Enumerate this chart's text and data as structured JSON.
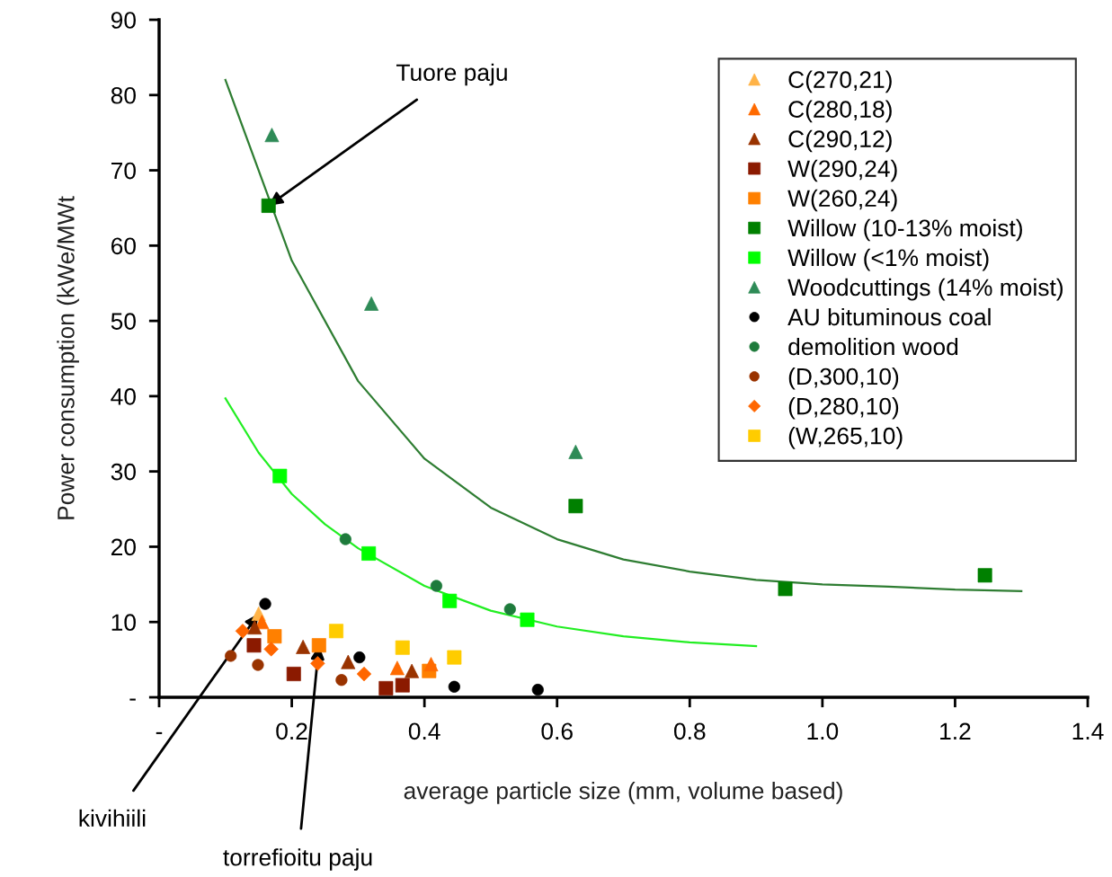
{
  "chart_data": {
    "type": "scatter",
    "xlabel": "average particle size (mm, volume based)",
    "ylabel": "Power consumption (kWe/MWt",
    "xlim": [
      0,
      1.4
    ],
    "xticks": [
      {
        "value": 0,
        "label": "-"
      },
      {
        "value": 0.2,
        "label": "0.2"
      },
      {
        "value": 0.4,
        "label": "0.4"
      },
      {
        "value": 0.6,
        "label": "0.6"
      },
      {
        "value": 0.8,
        "label": "0.8"
      },
      {
        "value": 1.0,
        "label": "1.0"
      },
      {
        "value": 1.2,
        "label": "1.2"
      },
      {
        "value": 1.4,
        "label": "1.4"
      }
    ],
    "ylim": [
      0,
      90
    ],
    "yticks": [
      {
        "value": 0,
        "label": "-"
      },
      10,
      20,
      30,
      40,
      50,
      60,
      70,
      80,
      90
    ],
    "grid": false,
    "legend": "top right",
    "series": [
      {
        "type": "line",
        "color": "#2e7d32",
        "marker": "none",
        "x": [
          0.1,
          0.2,
          0.3,
          0.4,
          0.5,
          0.6,
          0.7,
          0.8,
          0.9,
          1.0,
          1.1,
          1.2,
          1.3
        ],
        "values": [
          82,
          58,
          42,
          31.7,
          25.2,
          21,
          18.3,
          16.7,
          15.6,
          15,
          14.7,
          14.3,
          14.1
        ]
      },
      {
        "type": "line",
        "color": "#22ee22",
        "marker": "none",
        "x": [
          0.1,
          0.15,
          0.2,
          0.25,
          0.3,
          0.4,
          0.5,
          0.6,
          0.7,
          0.8,
          0.9
        ],
        "values": [
          39.7,
          32.5,
          27,
          23,
          19.8,
          14.8,
          11.5,
          9.4,
          8.1,
          7.3,
          6.8
        ]
      },
      {
        "name": "C(270,21)",
        "marker": "triangle",
        "color": "#ffb347",
        "x": [
          0.15
        ],
        "values": [
          11.1
        ]
      },
      {
        "name": "C(280,18)",
        "marker": "triangle",
        "color": "#ff6a00",
        "x": [
          0.155,
          0.359,
          0.41
        ],
        "values": [
          10.0,
          3.9,
          4.4
        ]
      },
      {
        "name": "C(290,12)",
        "marker": "triangle",
        "color": "#993300",
        "x": [
          0.144,
          0.217,
          0.285,
          0.381
        ],
        "values": [
          9.3,
          6.7,
          4.7,
          3.5
        ]
      },
      {
        "name": "W(290,24)",
        "marker": "square",
        "color": "#8b1a00",
        "x": [
          0.143,
          0.203,
          0.342,
          0.367
        ],
        "values": [
          6.9,
          3.1,
          1.2,
          1.6
        ]
      },
      {
        "name": "W(260,24)",
        "marker": "square",
        "color": "#ff8000",
        "x": [
          0.174,
          0.241,
          0.407
        ],
        "values": [
          8.1,
          6.9,
          3.5
        ]
      },
      {
        "name": "Willow (10-13% moist)",
        "marker": "square",
        "color": "#008000",
        "x": [
          0.165,
          0.628,
          0.944,
          1.245
        ],
        "values": [
          65.3,
          25.4,
          14.4,
          16.2
        ]
      },
      {
        "name": "Willow (<1% moist)",
        "marker": "square",
        "color": "#00ff00",
        "x": [
          0.182,
          0.316,
          0.438,
          0.555
        ],
        "values": [
          29.4,
          19.1,
          12.8,
          10.3
        ]
      },
      {
        "name": "Woodcuttings (14% moist)",
        "marker": "triangle",
        "color": "#2e8b57",
        "x": [
          0.17,
          0.32,
          0.628
        ],
        "values": [
          74.7,
          52.3,
          32.6
        ]
      },
      {
        "name": "AU bituminous coal",
        "marker": "circle",
        "color": "#000000",
        "x": [
          0.16,
          0.302,
          0.445,
          0.571
        ],
        "values": [
          12.4,
          5.3,
          1.4,
          1.0
        ]
      },
      {
        "name": "demolition wood",
        "marker": "circle",
        "color": "#1e7b3c",
        "x": [
          0.281,
          0.418,
          0.529
        ],
        "values": [
          21.0,
          14.8,
          11.7
        ]
      },
      {
        "name": "(D,300,10)",
        "marker": "circle",
        "color": "#993300",
        "x": [
          0.108,
          0.149,
          0.275
        ],
        "values": [
          5.5,
          4.3,
          2.3
        ]
      },
      {
        "name": "(D,280,10)",
        "marker": "diamond",
        "color": "#ff6600",
        "x": [
          0.126,
          0.169,
          0.239,
          0.309
        ],
        "values": [
          8.8,
          6.4,
          4.5,
          3.1
        ]
      },
      {
        "name": "(W,265,10)",
        "marker": "square",
        "color": "#ffcc00",
        "x": [
          0.267,
          0.367,
          0.445
        ],
        "values": [
          8.8,
          6.6,
          5.3
        ]
      }
    ],
    "annotations": [
      {
        "text": "Tuore paju",
        "x": 0.165,
        "y": 65.3
      },
      {
        "text": "kivihiili",
        "x": 0.15,
        "y": 11.1
      },
      {
        "text": "torrefioitu paju",
        "x": 0.241,
        "y": 6.9
      }
    ]
  }
}
